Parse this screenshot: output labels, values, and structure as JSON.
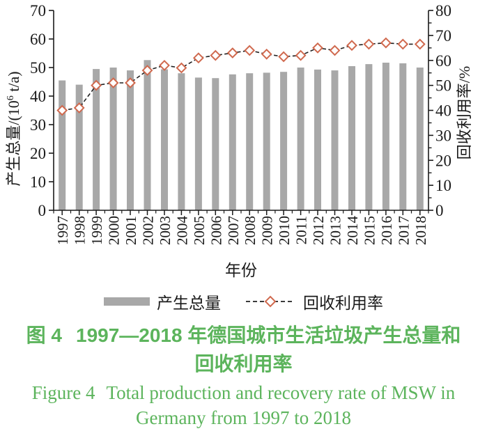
{
  "chart_data": {
    "type": "bar+line",
    "categories": [
      "1997",
      "1998",
      "1999",
      "2000",
      "2001",
      "2002",
      "2003",
      "2004",
      "2005",
      "2006",
      "2007",
      "2008",
      "2009",
      "2010",
      "2011",
      "2012",
      "2013",
      "2014",
      "2015",
      "2016",
      "2017",
      "2018"
    ],
    "series": [
      {
        "name": "产生总量",
        "type": "bar",
        "yaxis": "left",
        "color": "#a8a8a8",
        "values": [
          45.5,
          44,
          49.5,
          50,
          49,
          52.6,
          49.4,
          48,
          46.5,
          46.3,
          47.6,
          48,
          48.2,
          48.5,
          50,
          49.3,
          49,
          50.5,
          51.2,
          51.7,
          51.5,
          50
        ]
      },
      {
        "name": "回收利用率",
        "type": "line",
        "yaxis": "right",
        "line_color": "#1f1f1f",
        "line_style": "dashed",
        "marker": "diamond",
        "marker_stroke": "#d0694e",
        "marker_fill": "#ffffff",
        "values": [
          40,
          41,
          50,
          51,
          51,
          56,
          58,
          57,
          61,
          62,
          63,
          64,
          62.5,
          61.5,
          62,
          65,
          64,
          66,
          66.5,
          67,
          66.5,
          66.5
        ]
      }
    ],
    "left_axis": {
      "title": "产生总量/(10⁶ t/a)",
      "title_prefix": "产生总量/(10",
      "title_sup": "6",
      "title_suffix": " t/a)",
      "min": 0,
      "max": 70,
      "step": 10,
      "ticks": [
        0,
        10,
        20,
        30,
        40,
        50,
        60,
        70
      ]
    },
    "right_axis": {
      "title": "回收利用率/%",
      "min": 0,
      "max": 80,
      "step": 10,
      "minor_step": 5,
      "ticks": [
        0,
        10,
        20,
        30,
        40,
        50,
        60,
        70,
        80
      ]
    },
    "xlabel": "年份",
    "legend": {
      "position": "bottom",
      "items": [
        "产生总量",
        "回收利用率"
      ]
    },
    "grid": false
  },
  "caption": {
    "zh_label": "图 4",
    "zh_line1": "1997—2018 年德国城市生活垃圾产生总量和",
    "zh_line2": "回收利用率",
    "en_label": "Figure 4",
    "en_line1": "Total production and recovery rate of MSW in",
    "en_line2": "Germany from 1997 to 2018",
    "color": "#5cb45c"
  }
}
